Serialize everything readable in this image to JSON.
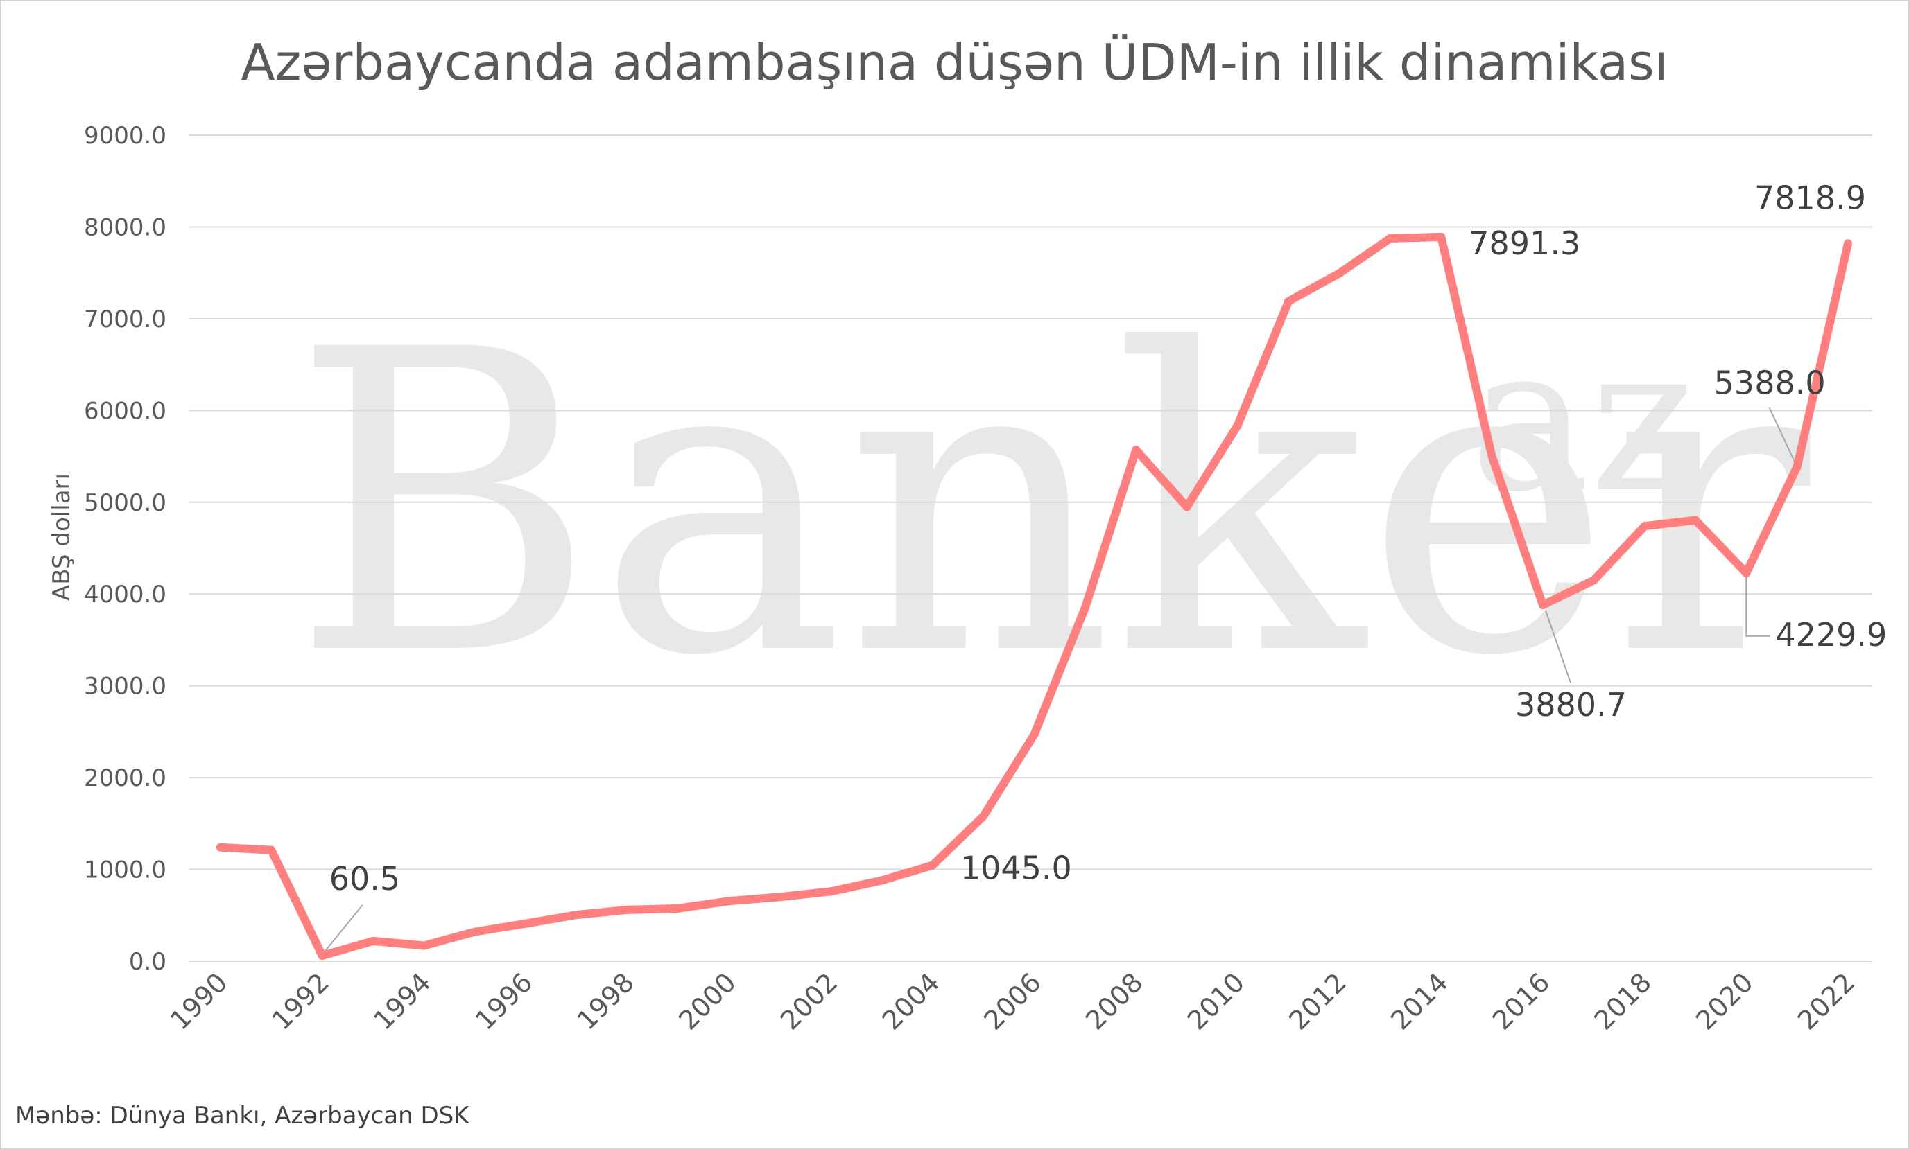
{
  "title": "Azərbaycanda adambaşına düşən ÜDM-in illik dinamikası",
  "source": "Mənbə: Dünya Bankı, Azərbaycan DSK",
  "watermark": {
    "main": "Banker",
    "sup": "az"
  },
  "colors": {
    "line": "#ff7f7f",
    "grid": "#d9d9d9",
    "leader": "#a6a6a6",
    "text": "#595959"
  },
  "chart_data": {
    "type": "line",
    "title": "Azərbaycanda adambaşına düşən ÜDM-in illik dinamikası",
    "xlabel": "",
    "ylabel": "ABŞ dolları",
    "ylim": [
      0,
      9000
    ],
    "yticks": [
      "0.0",
      "1000.0",
      "2000.0",
      "3000.0",
      "4000.0",
      "5000.0",
      "6000.0",
      "7000.0",
      "8000.0",
      "9000.0"
    ],
    "xticks": [
      "1990",
      "1992",
      "1994",
      "1996",
      "1998",
      "2000",
      "2002",
      "2004",
      "2006",
      "2008",
      "2010",
      "2012",
      "2014",
      "2016",
      "2018",
      "2020",
      "2022"
    ],
    "grid": true,
    "series": [
      {
        "x": [
          1990,
          1991,
          1992,
          1993,
          1994,
          1995,
          1996,
          1997,
          1998,
          1999,
          2000,
          2001,
          2002,
          2003,
          2004,
          2005,
          2006,
          2007,
          2008,
          2009,
          2010,
          2011,
          2012,
          2013,
          2014,
          2015,
          2016,
          2017,
          2018,
          2019,
          2020,
          2021,
          2022
        ],
        "values": [
          1240,
          1210,
          60.5,
          220,
          170,
          320,
          410,
          505,
          560,
          575,
          655,
          700,
          760,
          880,
          1045.0,
          1580,
          2470,
          3850,
          5570,
          4950,
          5840,
          7190,
          7495,
          7875,
          7891.3,
          5500,
          3880.7,
          4150,
          4740,
          4805,
          4229.9,
          5388.0,
          7818.9
        ]
      }
    ],
    "labels": [
      {
        "year": 1992,
        "text": "60.5"
      },
      {
        "year": 2004,
        "text": "1045.0"
      },
      {
        "year": 2014,
        "text": "7891.3"
      },
      {
        "year": 2016,
        "text": "3880.7"
      },
      {
        "year": 2020,
        "text": "4229.9"
      },
      {
        "year": 2021,
        "text": "5388.0"
      },
      {
        "year": 2022,
        "text": "7818.9"
      }
    ]
  }
}
